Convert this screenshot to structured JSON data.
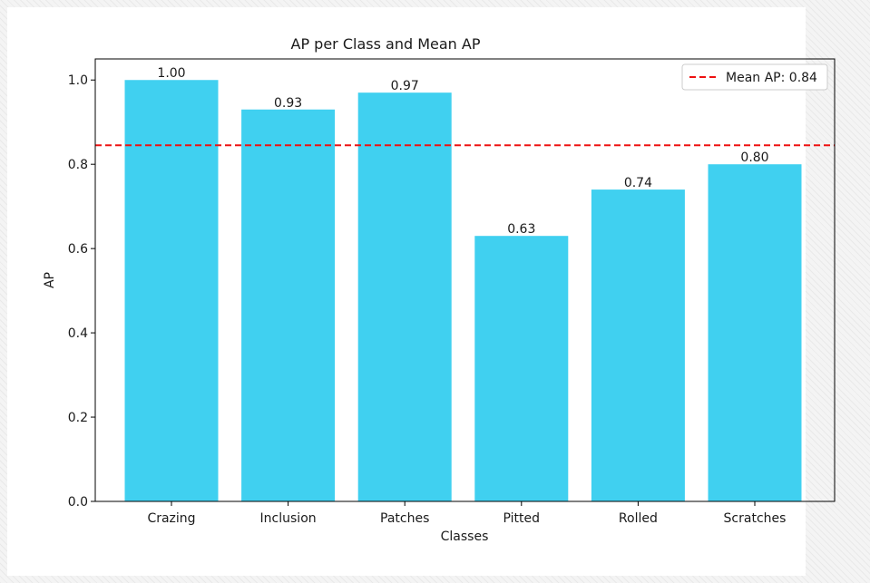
{
  "chart_data": {
    "type": "bar",
    "title": "AP per Class and Mean AP",
    "xlabel": "Classes",
    "ylabel": "AP",
    "categories": [
      "Crazing",
      "Inclusion",
      "Patches",
      "Pitted",
      "Rolled",
      "Scratches"
    ],
    "values": [
      1.0,
      0.93,
      0.97,
      0.63,
      0.74,
      0.8
    ],
    "value_labels": [
      "1.00",
      "0.93",
      "0.97",
      "0.63",
      "0.74",
      "0.80"
    ],
    "ylim": [
      0,
      1.05
    ],
    "yticks": [
      0.0,
      0.2,
      0.4,
      0.6,
      0.8,
      1.0
    ],
    "ytick_labels": [
      "0.0",
      "0.2",
      "0.4",
      "0.6",
      "0.8",
      "1.0"
    ],
    "mean_line": {
      "value": 0.845,
      "label": "Mean AP: 0.84"
    },
    "bar_color": "#40d0f0",
    "mean_line_color": "#ee1111",
    "legend_position": "top-right",
    "grid": false
  }
}
